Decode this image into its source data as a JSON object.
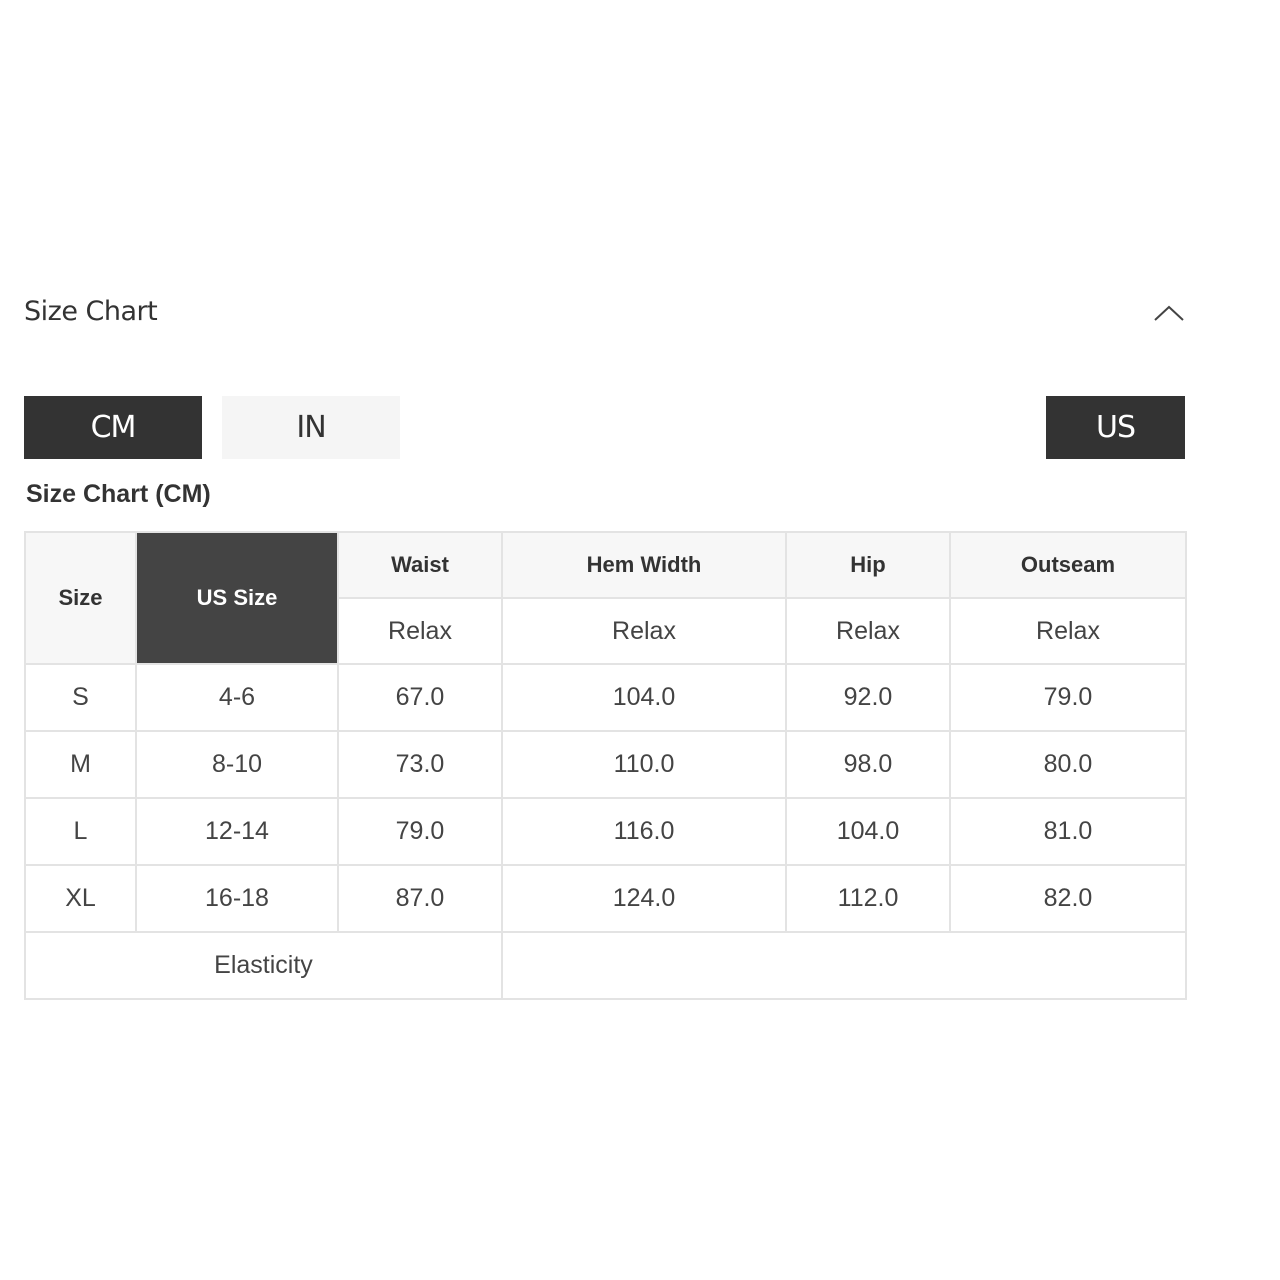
{
  "section": {
    "title": "Size Chart",
    "collapse_icon": "chevron-up-icon"
  },
  "units": {
    "cm": "CM",
    "in": "IN",
    "active": "CM"
  },
  "region": {
    "label": "US"
  },
  "table": {
    "subtitle": "Size Chart (CM)",
    "headers": {
      "size": "Size",
      "us_size": "US Size",
      "waist": "Waist",
      "hem_width": "Hem Width",
      "hip": "Hip",
      "outseam": "Outseam"
    },
    "sub_headers": [
      "Relax",
      "Relax",
      "Relax",
      "Relax"
    ],
    "rows": [
      [
        "S",
        "4-6",
        "67.0",
        "104.0",
        "92.0",
        "79.0"
      ],
      [
        "M",
        "8-10",
        "73.0",
        "110.0",
        "98.0",
        "80.0"
      ],
      [
        "L",
        "12-14",
        "79.0",
        "116.0",
        "104.0",
        "81.0"
      ],
      [
        "XL",
        "16-18",
        "87.0",
        "124.0",
        "112.0",
        "82.0"
      ]
    ],
    "footer_label": "Elasticity",
    "footer_value": ""
  },
  "colors": {
    "active": "#333333",
    "us_header": "#444444",
    "border": "#e3e3e3"
  }
}
